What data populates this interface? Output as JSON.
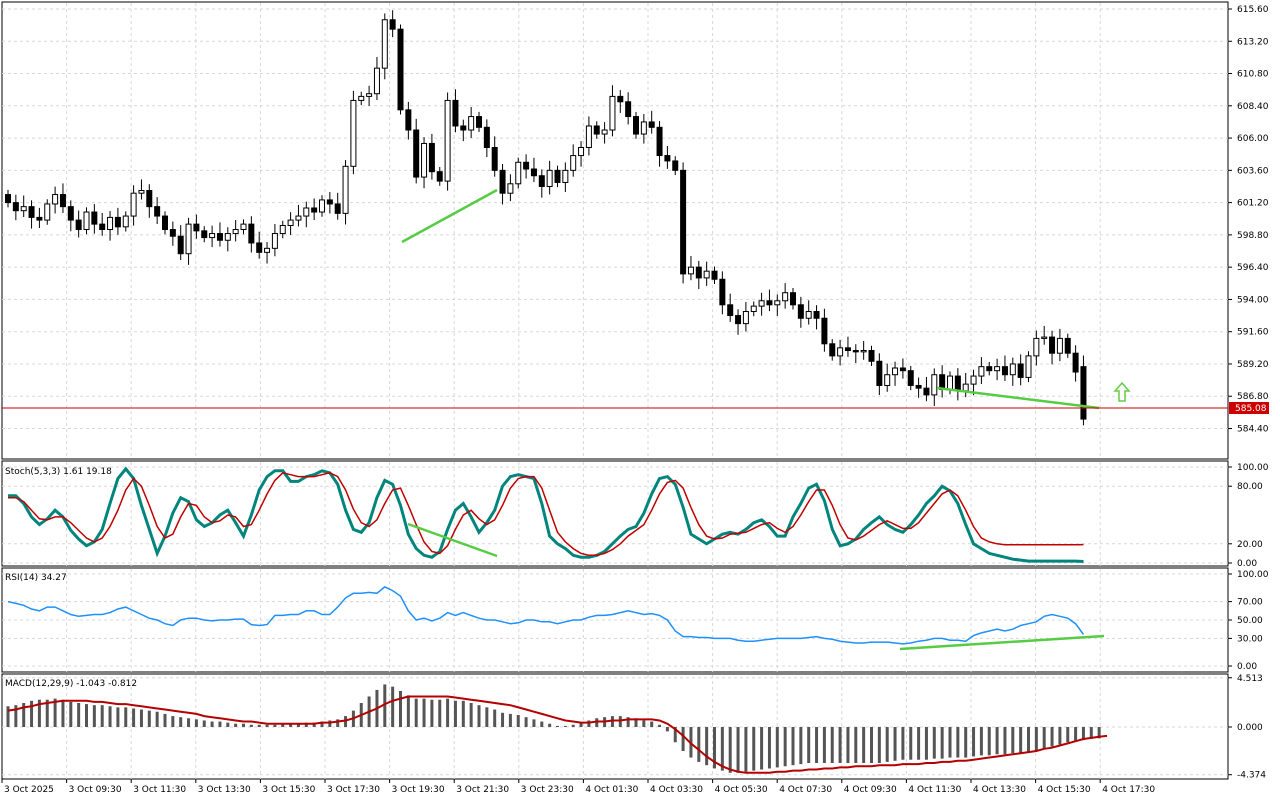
{
  "colors": {
    "bull_fill": "#ffffff",
    "bear_fill": "#000000",
    "candle_outline": "#000000",
    "price_line": "#cc0000",
    "price_label_bg": "#cc0000",
    "stoch_main": "#00857c",
    "stoch_signal": "#c00000",
    "rsi": "#1e90ff",
    "macd_hist": "#555555",
    "macd_signal": "#b40000",
    "divergence": "#55cc44",
    "arrow": "#66cc44",
    "grid": "#d8d8d8"
  },
  "main_pane": {
    "price_labels": [
      "615.60",
      "613.20",
      "610.80",
      "608.40",
      "606.00",
      "603.60",
      "601.20",
      "598.80",
      "596.40",
      "594.00",
      "591.60",
      "589.20",
      "586.80",
      "584.40"
    ],
    "current_price": "585.08",
    "arrow_icon": "up-arrow-icon"
  },
  "stoch_pane": {
    "label": "Stoch(5,3,3) 1.61 19.18",
    "levels": [
      "100.00",
      "80.00",
      "20.00",
      "0.00"
    ]
  },
  "rsi_pane": {
    "label": "RSI(14) 34.27",
    "levels": [
      "100.00",
      "70.00",
      "50.00",
      "30.00",
      "0.00"
    ]
  },
  "macd_pane": {
    "label": "MACD(12,29,9) -1.043 -0.812",
    "levels": [
      "4.513",
      "0.000",
      "-4.374"
    ]
  },
  "time_labels": [
    "3 Oct 2025",
    "3 Oct 09:30",
    "3 Oct 11:30",
    "3 Oct 13:30",
    "3 Oct 15:30",
    "3 Oct 17:30",
    "3 Oct 19:30",
    "3 Oct 21:30",
    "3 Oct 23:30",
    "4 Oct 01:30",
    "4 Oct 03:30",
    "4 Oct 05:30",
    "4 Oct 07:30",
    "4 Oct 09:30",
    "4 Oct 11:30",
    "4 Oct 13:30",
    "4 Oct 15:30",
    "4 Oct 17:30"
  ],
  "chart_data": [
    {
      "type": "candlestick",
      "title": "",
      "ylim": [
        583.2,
        615.6
      ],
      "close": [
        601.2,
        600.6,
        600.9,
        600.1,
        599.9,
        601.1,
        601.8,
        600.9,
        599.9,
        599.2,
        600.5,
        599.6,
        599.2,
        600.1,
        599.4,
        600.2,
        601.9,
        602.1,
        600.9,
        600.2,
        599.2,
        598.7,
        597.4,
        599.6,
        599.1,
        598.6,
        598.9,
        598.4,
        598.9,
        599.2,
        599.6,
        598.2,
        597.5,
        597.8,
        598.9,
        599.5,
        599.9,
        600.2,
        600.8,
        600.5,
        601.4,
        601.1,
        600.4,
        603.9,
        608.8,
        609.1,
        609.3,
        611.2,
        614.8,
        614.1,
        608.1,
        606.6,
        603.1,
        605.6,
        603.5,
        602.8,
        608.8,
        606.9,
        606.6,
        607.6,
        606.8,
        605.3,
        603.6,
        601.9,
        602.6,
        604.2,
        603.7,
        603.2,
        602.4,
        603.6,
        602.7,
        603.6,
        604.7,
        605.3,
        606.9,
        606.3,
        606.6,
        609.1,
        608.7,
        607.6,
        606.3,
        607.2,
        606.8,
        604.7,
        604.3,
        603.6,
        595.9,
        596.4,
        595.6,
        596.1,
        595.5,
        593.6,
        592.8,
        592.2,
        593.1,
        593.5,
        593.9,
        593.6,
        593.9,
        594.5,
        593.6,
        592.6,
        593.1,
        592.6,
        590.7,
        589.8,
        590.4,
        590.2,
        590.1,
        590.2,
        589.4,
        587.6,
        588.4,
        588.9,
        588.7,
        587.6,
        587.4,
        586.9,
        588.4,
        587.3,
        588.3,
        587.2,
        587.7,
        588.3,
        589.0,
        588.7,
        589.0,
        588.4,
        589.2,
        588.2,
        589.8,
        591.1,
        591.2,
        590.0,
        591.1,
        590.0,
        588.6,
        585.1
      ]
    },
    {
      "type": "line",
      "title": "Stoch(5,3,3) 1.61 19.18",
      "ylim": [
        0,
        100
      ],
      "series": [
        {
          "name": "",
          "values": [
            70,
            70,
            62,
            48,
            40,
            46,
            55,
            48,
            34,
            25,
            18,
            22,
            35,
            62,
            88,
            98,
            88,
            60,
            35,
            10,
            28,
            52,
            68,
            64,
            45,
            38,
            42,
            50,
            55,
            42,
            28,
            50,
            76,
            90,
            96,
            96,
            85,
            85,
            90,
            92,
            96,
            94,
            82,
            55,
            35,
            32,
            42,
            68,
            86,
            82,
            60,
            30,
            15,
            8,
            6,
            12,
            35,
            55,
            62,
            48,
            32,
            42,
            55,
            80,
            90,
            92,
            90,
            88,
            62,
            28,
            20,
            15,
            8,
            6,
            6,
            8,
            12,
            20,
            28,
            35,
            38,
            52,
            72,
            88,
            90,
            82,
            58,
            30,
            25,
            20,
            25,
            30,
            32,
            30,
            35,
            42,
            45,
            38,
            28,
            28,
            48,
            62,
            78,
            82,
            65,
            35,
            18,
            20,
            25,
            35,
            42,
            48,
            40,
            35,
            32,
            40,
            50,
            62,
            70,
            80,
            75,
            62,
            40,
            20,
            15,
            10,
            8,
            6,
            4,
            3,
            2,
            2,
            2,
            2,
            2,
            2,
            2,
            1.61
          ]
        },
        {
          "name": "",
          "values": [
            68,
            68,
            64,
            55,
            46,
            45,
            48,
            48,
            42,
            34,
            26,
            22,
            26,
            38,
            55,
            76,
            88,
            80,
            60,
            38,
            26,
            30,
            48,
            62,
            60,
            48,
            42,
            44,
            50,
            48,
            38,
            40,
            55,
            72,
            86,
            94,
            92,
            90,
            90,
            90,
            92,
            94,
            90,
            76,
            56,
            42,
            38,
            45,
            62,
            76,
            78,
            60,
            40,
            22,
            12,
            10,
            18,
            35,
            50,
            55,
            46,
            40,
            45,
            60,
            78,
            88,
            90,
            90,
            78,
            55,
            32,
            22,
            15,
            10,
            8,
            8,
            10,
            14,
            20,
            28,
            34,
            40,
            55,
            72,
            84,
            86,
            78,
            58,
            40,
            28,
            25,
            26,
            30,
            31,
            32,
            36,
            40,
            42,
            36,
            32,
            38,
            50,
            64,
            76,
            76,
            60,
            40,
            26,
            24,
            28,
            34,
            40,
            44,
            40,
            36,
            36,
            42,
            52,
            62,
            72,
            76,
            70,
            55,
            38,
            26,
            22,
            20,
            19,
            19,
            19,
            19,
            19,
            19,
            19,
            19,
            19,
            19,
            19.18
          ]
        }
      ]
    },
    {
      "type": "line",
      "title": "RSI(14) 34.27",
      "ylim": [
        0,
        100
      ],
      "series": [
        {
          "name": "",
          "values": [
            70,
            68,
            66,
            62,
            60,
            64,
            64,
            60,
            56,
            54,
            55,
            56,
            56,
            58,
            62,
            64,
            60,
            56,
            52,
            50,
            46,
            44,
            50,
            52,
            52,
            50,
            49,
            50,
            50,
            51,
            51,
            45,
            44,
            45,
            55,
            55,
            56,
            56,
            60,
            60,
            56,
            56,
            64,
            74,
            79,
            79,
            80,
            79,
            86,
            82,
            76,
            60,
            50,
            52,
            49,
            52,
            58,
            55,
            58,
            55,
            52,
            50,
            50,
            48,
            46,
            47,
            50,
            50,
            48,
            48,
            46,
            48,
            50,
            50,
            53,
            55,
            55,
            56,
            58,
            60,
            58,
            56,
            57,
            55,
            50,
            38,
            32,
            32,
            31,
            31,
            30,
            30,
            30,
            28,
            27,
            27,
            28,
            29,
            30,
            30,
            30,
            30,
            31,
            32,
            30,
            29,
            27,
            26,
            25,
            25,
            26,
            26,
            26,
            25,
            24,
            25,
            27,
            28,
            30,
            30,
            28,
            28,
            27,
            33,
            36,
            38,
            40,
            38,
            40,
            44,
            46,
            48,
            54,
            56,
            54,
            52,
            46,
            34.27
          ]
        },
        {
          "name": "",
          "values": [
            null,
            null,
            null,
            null,
            null,
            null,
            null,
            null,
            null,
            null,
            null,
            null,
            null,
            null,
            null,
            null,
            null,
            null,
            null,
            null,
            null,
            null,
            null,
            null,
            null,
            null,
            null,
            null,
            null,
            null,
            null,
            null,
            null,
            null,
            null,
            null,
            null,
            null,
            null,
            null,
            null,
            null,
            null,
            null,
            null,
            null,
            null,
            null,
            null,
            null,
            null,
            null,
            null,
            null,
            null,
            null,
            null,
            null,
            null,
            null,
            null,
            null,
            null,
            null,
            null,
            null,
            null,
            null,
            null,
            null,
            null,
            null,
            null,
            null,
            null,
            null,
            null,
            null,
            null,
            null,
            null,
            null,
            null,
            null,
            null,
            null,
            null,
            null,
            null,
            null,
            null,
            null,
            null,
            null,
            null,
            null,
            null,
            null,
            null,
            null,
            null,
            null,
            null,
            null,
            null,
            null,
            null,
            null,
            null,
            null,
            null,
            null,
            null,
            null,
            23,
            24,
            25,
            26,
            27,
            28,
            29,
            30,
            31,
            32,
            33,
            34,
            34.27
          ]
        }
      ]
    },
    {
      "type": "bar",
      "title": "MACD(12,29,9) -1.043 -0.812",
      "ylim": [
        -4.374,
        4.513
      ],
      "hist": [
        1.9,
        2.0,
        2.2,
        2.4,
        2.5,
        2.5,
        2.6,
        2.5,
        2.3,
        2.2,
        2.1,
        2.0,
        2.0,
        1.9,
        1.8,
        1.8,
        1.7,
        1.6,
        1.5,
        1.4,
        1.2,
        1.0,
        0.9,
        0.8,
        0.7,
        0.6,
        0.5,
        0.5,
        0.4,
        0.3,
        0.3,
        0.2,
        0.2,
        0.2,
        0.2,
        0.3,
        0.3,
        0.3,
        0.4,
        0.4,
        0.5,
        0.6,
        0.7,
        1.0,
        1.5,
        2.2,
        2.8,
        3.4,
        3.9,
        3.7,
        3.3,
        2.9,
        2.6,
        2.6,
        2.5,
        2.5,
        2.6,
        2.4,
        2.4,
        2.2,
        2.0,
        1.8,
        1.6,
        1.3,
        1.2,
        1.1,
        0.9,
        0.7,
        0.5,
        0.3,
        0.1,
        0.1,
        0.2,
        0.4,
        0.6,
        0.8,
        0.9,
        1.0,
        1.0,
        0.9,
        0.8,
        0.6,
        0.5,
        0.2,
        -0.4,
        -1.4,
        -2.2,
        -2.8,
        -3.2,
        -3.5,
        -3.8,
        -4.0,
        -4.2,
        -4.2,
        -4.1,
        -4.0,
        -3.9,
        -3.8,
        -3.7,
        -3.6,
        -3.5,
        -3.4,
        -3.3,
        -3.3,
        -3.3,
        -3.3,
        -3.3,
        -3.3,
        -3.3,
        -3.3,
        -3.3,
        -3.3,
        -3.2,
        -3.1,
        -3.0,
        -3.0,
        -3.0,
        -3.0,
        -2.9,
        -2.9,
        -2.8,
        -2.8,
        -2.8,
        -2.7,
        -2.6,
        -2.6,
        -2.5,
        -2.5,
        -2.4,
        -2.4,
        -2.3,
        -2.2,
        -2.0,
        -1.8,
        -1.6,
        -1.4,
        -1.3,
        -1.2,
        -1.1,
        -1.043
      ],
      "signal": [
        1.5,
        1.6,
        1.8,
        1.9,
        2.1,
        2.2,
        2.3,
        2.4,
        2.4,
        2.4,
        2.4,
        2.3,
        2.3,
        2.2,
        2.1,
        2.1,
        2.0,
        1.9,
        1.8,
        1.7,
        1.6,
        1.5,
        1.4,
        1.3,
        1.2,
        1.0,
        0.9,
        0.8,
        0.7,
        0.6,
        0.5,
        0.5,
        0.4,
        0.3,
        0.3,
        0.3,
        0.3,
        0.3,
        0.3,
        0.3,
        0.4,
        0.4,
        0.5,
        0.6,
        0.8,
        1.1,
        1.4,
        1.7,
        2.1,
        2.4,
        2.6,
        2.8,
        2.8,
        2.8,
        2.8,
        2.8,
        2.8,
        2.7,
        2.6,
        2.5,
        2.4,
        2.3,
        2.2,
        2.1,
        2.0,
        1.8,
        1.6,
        1.4,
        1.2,
        1.0,
        0.8,
        0.6,
        0.5,
        0.4,
        0.4,
        0.5,
        0.5,
        0.6,
        0.6,
        0.7,
        0.7,
        0.7,
        0.7,
        0.6,
        0.3,
        -0.2,
        -0.8,
        -1.5,
        -2.1,
        -2.7,
        -3.2,
        -3.6,
        -3.9,
        -4.1,
        -4.2,
        -4.2,
        -4.2,
        -4.2,
        -4.1,
        -4.1,
        -4.0,
        -4.0,
        -3.9,
        -3.9,
        -3.8,
        -3.8,
        -3.7,
        -3.7,
        -3.6,
        -3.6,
        -3.6,
        -3.5,
        -3.5,
        -3.5,
        -3.4,
        -3.4,
        -3.4,
        -3.3,
        -3.3,
        -3.2,
        -3.2,
        -3.1,
        -3.1,
        -3.0,
        -2.9,
        -2.8,
        -2.7,
        -2.6,
        -2.5,
        -2.4,
        -2.3,
        -2.2,
        -2.0,
        -1.9,
        -1.7,
        -1.5,
        -1.3,
        -1.1,
        -1.0,
        -0.9,
        -0.812
      ]
    }
  ]
}
